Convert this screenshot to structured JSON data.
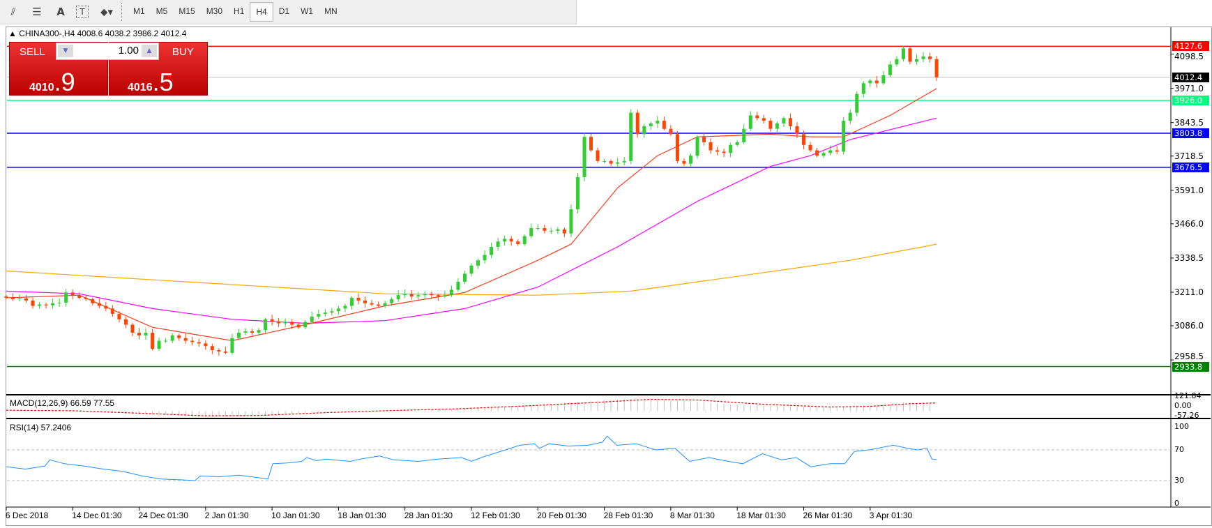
{
  "toolbar": {
    "icons": [
      "elliott-wave-icon",
      "fibonacci-icon",
      "text-icon",
      "text-label-icon",
      "arrows-icon"
    ],
    "text_icon": "A",
    "text_label_icon": "T",
    "timeframes": [
      "M1",
      "M5",
      "M15",
      "M30",
      "H1",
      "H4",
      "D1",
      "W1",
      "MN"
    ],
    "active_timeframe": "H4"
  },
  "chart": {
    "title": "CHINA300-,H4  4008.6 4038.2 3986.2 4012.4",
    "trade": {
      "sell_label": "SELL",
      "buy_label": "BUY",
      "lot": "1.00",
      "sell_big": "4010",
      "sell_small": ".9",
      "buy_big": "4016",
      "buy_small": ".5"
    },
    "colors": {
      "bull": "#32cd32",
      "bear": "#ff4500",
      "ma_fast": "#ff3b1a",
      "ma_mid": "#ff00ff",
      "ma_slow": "#ffa500",
      "rsi": "#1e90ff",
      "macd_hist": "#c0c0c0",
      "macd_signal": "#ff0000"
    }
  },
  "chart_data": {
    "type": "candlestick",
    "symbol": "CHINA300-",
    "timeframe": "H4",
    "ylim": [
      2917.0,
      4140.0
    ],
    "price_ticks": [
      "4098.5",
      "3971.0",
      "3843.5",
      "3718.5",
      "3591.0",
      "3466.0",
      "3338.5",
      "3211.0",
      "3086.0",
      "2958.5"
    ],
    "price_tick_values": [
      4098.5,
      3971.0,
      3843.5,
      3718.5,
      3591.0,
      3466.0,
      3338.5,
      3211.0,
      3086.0,
      2958.5
    ],
    "closes": [
      3190,
      3185,
      3188,
      3180,
      3160,
      3165,
      3162,
      3170,
      3172,
      3210,
      3200,
      3190,
      3185,
      3170,
      3160,
      3150,
      3130,
      3110,
      3090,
      3060,
      3050,
      3060,
      3000,
      3030,
      3030,
      3050,
      3040,
      3030,
      3025,
      3020,
      3010,
      2995,
      2990,
      2985,
      3040,
      3060,
      3065,
      3060,
      3070,
      3110,
      3100,
      3095,
      3100,
      3090,
      3080,
      3100,
      3120,
      3130,
      3135,
      3140,
      3150,
      3160,
      3190,
      3180,
      3170,
      3165,
      3160,
      3170,
      3185,
      3200,
      3205,
      3195,
      3200,
      3205,
      3200,
      3195,
      3200,
      3220,
      3250,
      3280,
      3310,
      3330,
      3350,
      3380,
      3400,
      3410,
      3400,
      3390,
      3420,
      3450,
      3450,
      3440,
      3440,
      3445,
      3430,
      3520,
      3640,
      3790,
      3740,
      3700,
      3700,
      3690,
      3695,
      3700,
      3880,
      3800,
      3830,
      3840,
      3850,
      3820,
      3800,
      3700,
      3690,
      3720,
      3790,
      3770,
      3740,
      3735,
      3730,
      3760,
      3770,
      3820,
      3870,
      3860,
      3850,
      3820,
      3840,
      3860,
      3830,
      3800,
      3760,
      3740,
      3720,
      3730,
      3740,
      3735,
      3850,
      3880,
      3950,
      3990,
      4000,
      3990,
      4020,
      4060,
      4080,
      4120,
      4070,
      4080,
      4090,
      4080,
      4012.4
    ],
    "ma_fast": [
      [
        0,
        3190
      ],
      [
        11,
        3200
      ],
      [
        22,
        3080
      ],
      [
        34,
        3030
      ],
      [
        45,
        3090
      ],
      [
        57,
        3160
      ],
      [
        69,
        3210
      ],
      [
        80,
        3330
      ],
      [
        85,
        3390
      ],
      [
        92,
        3600
      ],
      [
        98,
        3720
      ],
      [
        104,
        3790
      ],
      [
        115,
        3800
      ],
      [
        121,
        3790
      ],
      [
        126,
        3790
      ],
      [
        133,
        3870
      ],
      [
        140,
        3970
      ]
    ],
    "ma_mid": [
      [
        0,
        3215
      ],
      [
        11,
        3205
      ],
      [
        22,
        3150
      ],
      [
        34,
        3110
      ],
      [
        45,
        3095
      ],
      [
        57,
        3105
      ],
      [
        69,
        3150
      ],
      [
        80,
        3230
      ],
      [
        92,
        3380
      ],
      [
        104,
        3550
      ],
      [
        115,
        3680
      ],
      [
        121,
        3720
      ],
      [
        127,
        3780
      ],
      [
        140,
        3860
      ]
    ],
    "ma_slow": [
      [
        0,
        3290
      ],
      [
        57,
        3205
      ],
      [
        80,
        3200
      ],
      [
        94,
        3215
      ],
      [
        110,
        3270
      ],
      [
        127,
        3330
      ],
      [
        140,
        3390
      ]
    ],
    "hlines": [
      {
        "price": 4127.6,
        "label": "4127.6",
        "color": "#ff0000"
      },
      {
        "price": 4012.4,
        "label": "4012.4",
        "color": "#000000",
        "line": "#c0c0c0"
      },
      {
        "price": 3926.0,
        "label": "3926.0",
        "color": "#00ff7f"
      },
      {
        "price": 3803.8,
        "label": "3803.8",
        "color": "#0000ff"
      },
      {
        "price": 3676.5,
        "label": "3676.5",
        "color": "#0000ff"
      },
      {
        "price": 2933.8,
        "label": "2933.8",
        "color": "#008000"
      }
    ],
    "time_labels": [
      "6 Dec 2018",
      "14 Dec 01:30",
      "24 Dec 01:30",
      "2 Jan 01:30",
      "10 Jan 01:30",
      "18 Jan 01:30",
      "28 Jan 01:30",
      "12 Feb 01:30",
      "20 Feb 01:30",
      "28 Feb 01:30",
      "8 Mar 01:30",
      "18 Mar 01:30",
      "26 Mar 01:30",
      "3 Apr 01:30"
    ],
    "macd": {
      "label": "MACD(12,26,9) 66.59 77.55",
      "ticks": [
        "121.84",
        "0.00",
        "-57.26"
      ],
      "ylim": [
        -57.26,
        121.84
      ],
      "hist": [
        [
          0,
          5
        ],
        [
          10,
          0
        ],
        [
          20,
          -30
        ],
        [
          28,
          -50
        ],
        [
          34,
          -50
        ],
        [
          40,
          -30
        ],
        [
          50,
          0
        ],
        [
          60,
          10
        ],
        [
          70,
          30
        ],
        [
          80,
          60
        ],
        [
          87,
          90
        ],
        [
          95,
          120
        ],
        [
          100,
          110
        ],
        [
          110,
          60
        ],
        [
          120,
          40
        ],
        [
          125,
          30
        ],
        [
          128,
          50
        ],
        [
          135,
          80
        ],
        [
          140,
          66.59
        ]
      ],
      "signal": [
        [
          0,
          8
        ],
        [
          10,
          3
        ],
        [
          20,
          -20
        ],
        [
          30,
          -45
        ],
        [
          38,
          -42
        ],
        [
          48,
          -15
        ],
        [
          58,
          5
        ],
        [
          68,
          22
        ],
        [
          78,
          48
        ],
        [
          88,
          80
        ],
        [
          97,
          112
        ],
        [
          104,
          105
        ],
        [
          114,
          65
        ],
        [
          124,
          38
        ],
        [
          130,
          45
        ],
        [
          136,
          70
        ],
        [
          140,
          77.55
        ]
      ]
    },
    "rsi": {
      "label": "RSI(14) 57.2406",
      "ticks": [
        "100",
        "70",
        "30",
        "0"
      ],
      "levels": [
        70,
        30
      ],
      "points": [
        [
          0,
          48
        ],
        [
          4,
          45
        ],
        [
          8,
          49
        ],
        [
          9,
          57
        ],
        [
          12,
          52
        ],
        [
          16,
          49
        ],
        [
          20,
          45
        ],
        [
          24,
          42
        ],
        [
          28,
          36
        ],
        [
          32,
          32
        ],
        [
          36,
          31
        ],
        [
          39,
          30
        ],
        [
          40,
          36
        ],
        [
          44,
          35
        ],
        [
          48,
          37
        ],
        [
          53,
          33
        ],
        [
          54,
          32
        ],
        [
          55,
          52
        ],
        [
          58,
          53
        ],
        [
          61,
          55
        ],
        [
          62,
          60
        ],
        [
          64,
          56
        ],
        [
          66,
          58
        ],
        [
          71,
          55
        ],
        [
          73,
          58
        ],
        [
          75,
          60
        ],
        [
          77,
          62
        ],
        [
          80,
          57
        ],
        [
          85,
          55
        ],
        [
          89,
          58
        ],
        [
          94,
          60
        ],
        [
          96,
          55
        ],
        [
          98,
          60
        ],
        [
          103,
          70
        ],
        [
          106,
          76
        ],
        [
          109,
          78
        ],
        [
          110,
          72
        ],
        [
          112,
          78
        ],
        [
          116,
          75
        ],
        [
          120,
          76
        ],
        [
          123,
          80
        ],
        [
          124,
          88
        ],
        [
          126,
          76
        ],
        [
          130,
          78
        ],
        [
          134,
          70
        ],
        [
          138,
          72
        ],
        [
          141,
          55
        ],
        [
          145,
          60
        ],
        [
          149,
          55
        ],
        [
          152,
          52
        ],
        [
          156,
          65
        ],
        [
          160,
          57
        ],
        [
          163,
          60
        ],
        [
          166,
          48
        ],
        [
          170,
          52
        ],
        [
          173,
          52
        ],
        [
          175,
          68
        ],
        [
          178,
          70
        ],
        [
          183,
          76
        ],
        [
          186,
          72
        ],
        [
          188,
          70
        ],
        [
          190,
          72
        ],
        [
          191,
          58
        ],
        [
          192,
          57.24
        ]
      ]
    }
  }
}
